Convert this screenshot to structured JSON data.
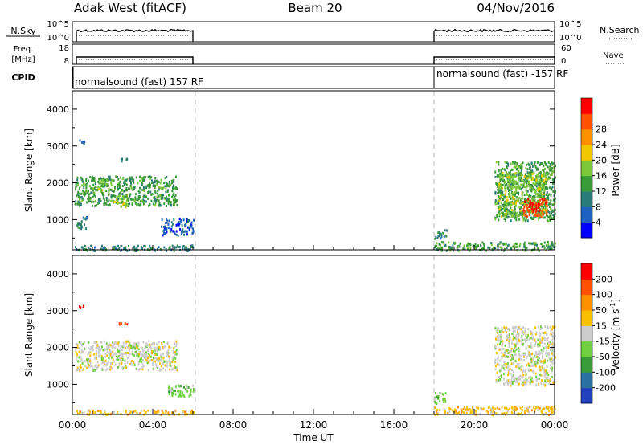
{
  "header": {
    "station": "Adak West (fitACF)",
    "beam": "Beam 20",
    "date": "04/Nov/2016"
  },
  "colors": {
    "frame": "#000000",
    "gap_line": "#bbbbbb",
    "ground_scatter": "#bebebe"
  },
  "chart_data": [
    {
      "type": "line",
      "panel": "noise",
      "left_label": "N.Sky",
      "right_label": "N.Search",
      "left_ticks": [
        "10^5",
        "10^0"
      ],
      "right_ticks": [
        "10^5",
        "10^0"
      ],
      "segments_hours": [
        [
          0.2,
          6.0
        ],
        [
          18.0,
          24.0
        ]
      ]
    },
    {
      "type": "line",
      "panel": "frequency",
      "left_label": "Freq.",
      "left_label2": "[MHz]",
      "right_label": "Nave",
      "left_ticks": [
        "18",
        "8"
      ],
      "right_ticks": [
        "60",
        "0"
      ],
      "ylim": [
        8,
        18
      ],
      "freq_mhz": 13,
      "segments_hours": [
        [
          0.2,
          6.0
        ],
        [
          18.0,
          24.0
        ]
      ]
    },
    {
      "type": "table",
      "panel": "cpid",
      "label": "CPID",
      "entries": [
        {
          "start_hour": 0.2,
          "text": "normalsound (fast) 157 RF"
        },
        {
          "start_hour": 18.0,
          "text": "normalsound (fast) -157 RF"
        }
      ]
    },
    {
      "type": "heatmap",
      "panel": "power",
      "ylabel": "Slant Range [km]",
      "xlabel": "",
      "xlim": [
        0,
        24
      ],
      "ylim": [
        180,
        4500
      ],
      "y_ticks": [
        1000,
        2000,
        3000,
        4000
      ],
      "colorbar": {
        "label": "Power [dB]",
        "ticks": [
          4,
          8,
          12,
          16,
          20,
          24,
          28
        ],
        "colors": [
          "#0000ff",
          "#2060c0",
          "#2a7a7a",
          "#3a9a3a",
          "#7cc83a",
          "#f0c800",
          "#ff9000",
          "#ff5000",
          "#ff0000"
        ]
      },
      "regions": [
        {
          "t0": 0.3,
          "t1": 0.6,
          "r0": 3050,
          "r1": 3200,
          "level": 2
        },
        {
          "t0": 2.3,
          "t1": 2.7,
          "r0": 2600,
          "r1": 2700,
          "level": 2
        },
        {
          "t0": 0.1,
          "t1": 5.2,
          "r0": 1400,
          "r1": 2200,
          "level": 3
        },
        {
          "t0": 2.0,
          "t1": 2.8,
          "r0": 1350,
          "r1": 1700,
          "level": 4
        },
        {
          "t0": 1.2,
          "t1": 1.8,
          "r0": 1800,
          "r1": 2100,
          "level": 4
        },
        {
          "t0": 0.2,
          "t1": 0.7,
          "r0": 750,
          "r1": 1100,
          "level": 2
        },
        {
          "t0": 4.4,
          "t1": 6.0,
          "r0": 600,
          "r1": 1050,
          "level": 1
        },
        {
          "t0": 0.1,
          "t1": 6.0,
          "r0": 180,
          "r1": 330,
          "level": 2
        },
        {
          "t0": 18.0,
          "t1": 18.6,
          "r0": 500,
          "r1": 750,
          "level": 2
        },
        {
          "t0": 18.0,
          "t1": 24.0,
          "r0": 180,
          "r1": 420,
          "level": 3
        },
        {
          "t0": 21.0,
          "t1": 24.0,
          "r0": 1000,
          "r1": 2600,
          "level": 3
        },
        {
          "t0": 21.2,
          "t1": 23.6,
          "r0": 1100,
          "r1": 2300,
          "level": 4
        },
        {
          "t0": 22.4,
          "t1": 23.6,
          "r0": 1100,
          "r1": 1600,
          "level": 7
        },
        {
          "t0": 22.6,
          "t1": 23.3,
          "r0": 1250,
          "r1": 1500,
          "level": 8
        }
      ]
    },
    {
      "type": "heatmap",
      "panel": "velocity",
      "ylabel": "Slant Range [km]",
      "xlabel": "Time UT",
      "xlim": [
        0,
        24
      ],
      "ylim": [
        180,
        4500
      ],
      "y_ticks": [
        1000,
        2000,
        3000,
        4000
      ],
      "x_tick_labels": [
        "00:00",
        "04:00",
        "08:00",
        "12:00",
        "16:00",
        "20:00",
        "00:00"
      ],
      "x_tick_hours": [
        0,
        4,
        8,
        12,
        16,
        20,
        24
      ],
      "colorbar": {
        "label": "Velocity [m s-1]",
        "label_main": "Velocity [m s",
        "label_sup": "-1",
        "label_end": "]",
        "ticks": [
          "200",
          "100",
          "50",
          "15",
          "-15",
          "-50",
          "-100",
          "-200"
        ],
        "colors": [
          "#2040c0",
          "#2a70a0",
          "#3a9a3a",
          "#70d040",
          "#cccccc",
          "#f8c000",
          "#ff9000",
          "#ff5000",
          "#ff0000"
        ]
      },
      "regions": [
        {
          "t0": 0.3,
          "t1": 0.6,
          "r0": 3100,
          "r1": 3200,
          "level": 8
        },
        {
          "t0": 2.3,
          "t1": 2.7,
          "r0": 2600,
          "r1": 2700,
          "level": 7
        },
        {
          "t0": 0.1,
          "t1": 5.2,
          "r0": 1400,
          "r1": 2200,
          "level": 4
        },
        {
          "t0": 4.6,
          "t1": 6.0,
          "r0": 700,
          "r1": 1000,
          "level": 3
        },
        {
          "t0": 0.1,
          "t1": 6.0,
          "r0": 200,
          "r1": 320,
          "level": 5
        },
        {
          "t0": 18.0,
          "t1": 18.6,
          "r0": 500,
          "r1": 800,
          "level": 3
        },
        {
          "t0": 18.0,
          "t1": 24.0,
          "r0": 200,
          "r1": 420,
          "level": 5
        },
        {
          "t0": 21.0,
          "t1": 24.0,
          "r0": 1000,
          "r1": 2600,
          "level": 4
        }
      ]
    }
  ]
}
